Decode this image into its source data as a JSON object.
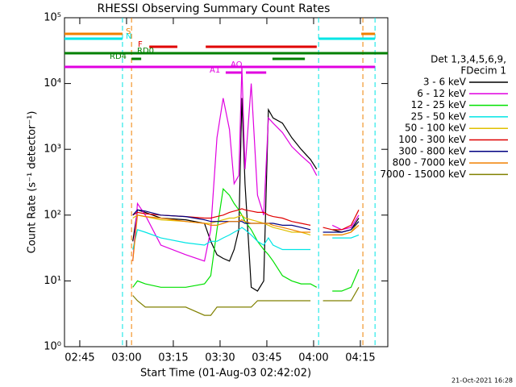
{
  "chart_data": {
    "type": "line",
    "title": "RHESSI Observing Summary Count Rates",
    "xlabel": "Start Time (01-Aug-03 02:42:02)",
    "ylabel": "Count Rate (s⁻¹ detector⁻¹)",
    "footer": "21-Oct-2021 16:28",
    "ylog": true,
    "xlim": [
      40.1,
      143.8
    ],
    "ylim": [
      1,
      100000
    ],
    "xticks": [
      {
        "value": 45,
        "label": "02:45"
      },
      {
        "value": 60,
        "label": "03:00"
      },
      {
        "value": 75,
        "label": "03:15"
      },
      {
        "value": 90,
        "label": "03:30"
      },
      {
        "value": 105,
        "label": "03:45"
      },
      {
        "value": 120,
        "label": "04:00"
      },
      {
        "value": 135,
        "label": "04:15"
      }
    ],
    "yticks": [
      {
        "value": 1,
        "label": "10⁰"
      },
      {
        "value": 10,
        "label": "10¹"
      },
      {
        "value": 100,
        "label": "10²"
      },
      {
        "value": 1000,
        "label": "10³"
      },
      {
        "value": 10000,
        "label": "10⁴"
      },
      {
        "value": 100000,
        "label": "10⁵"
      }
    ],
    "legend_title": [
      "Det 1,3,4,5,6,9,",
      "FDecim 1"
    ],
    "x": [
      62,
      63.5,
      66,
      71,
      79,
      85,
      87,
      89,
      91,
      93,
      94.5,
      96,
      97,
      98,
      100,
      102,
      104,
      105.5,
      107,
      110,
      113,
      116,
      119,
      121,
      123,
      126,
      129,
      132,
      134.5
    ],
    "series": [
      {
        "name": "3 - 6 keV",
        "color": "#000000",
        "values": [
          40,
          120,
          110,
          90,
          85,
          75,
          40,
          25,
          22,
          20,
          30,
          60,
          6000,
          300,
          8,
          7,
          10,
          4000,
          3000,
          2500,
          1500,
          1000,
          700,
          500,
          null,
          60,
          55,
          60,
          90
        ]
      },
      {
        "name": "6 - 12 keV",
        "color": "#e000e0",
        "values": [
          20,
          150,
          100,
          35,
          25,
          20,
          60,
          1500,
          6000,
          2000,
          300,
          400,
          18000,
          500,
          10000,
          200,
          100,
          3000,
          2500,
          1800,
          1100,
          800,
          600,
          400,
          null,
          70,
          60,
          65,
          100
        ]
      },
      {
        "name": "12 - 25 keV",
        "color": "#00e000",
        "values": [
          8,
          10,
          9,
          8,
          8,
          9,
          12,
          60,
          250,
          200,
          150,
          120,
          100,
          80,
          60,
          40,
          30,
          25,
          20,
          12,
          10,
          9,
          9,
          8,
          null,
          7,
          7,
          8,
          15
        ]
      },
      {
        "name": "25 - 50 keV",
        "color": "#00e5e5",
        "values": [
          30,
          60,
          55,
          45,
          38,
          35,
          40,
          40,
          45,
          50,
          55,
          60,
          65,
          60,
          50,
          40,
          35,
          45,
          35,
          30,
          30,
          30,
          30,
          null,
          null,
          45,
          45,
          45,
          50
        ]
      },
      {
        "name": "50 - 100 keV",
        "color": "#e0c000",
        "values": [
          90,
          100,
          95,
          85,
          80,
          75,
          75,
          80,
          85,
          90,
          90,
          95,
          100,
          90,
          85,
          80,
          75,
          70,
          65,
          60,
          55,
          55,
          50,
          null,
          50,
          50,
          50,
          55,
          80
        ]
      },
      {
        "name": "100 - 300 keV",
        "color": "#e00000",
        "values": [
          100,
          110,
          105,
          100,
          95,
          90,
          90,
          95,
          100,
          110,
          115,
          120,
          125,
          120,
          115,
          110,
          110,
          100,
          95,
          90,
          80,
          75,
          70,
          null,
          65,
          60,
          60,
          70,
          120
        ]
      },
      {
        "name": "300 - 800 keV",
        "color": "#000080",
        "values": [
          100,
          120,
          115,
          100,
          95,
          85,
          80,
          80,
          80,
          80,
          80,
          80,
          80,
          75,
          75,
          75,
          75,
          75,
          75,
          70,
          70,
          65,
          60,
          null,
          55,
          55,
          55,
          60,
          80
        ]
      },
      {
        "name": "800 - 7000 keV",
        "color": "#f08000",
        "values": [
          20,
          100,
          95,
          90,
          80,
          75,
          70,
          70,
          75,
          80,
          80,
          80,
          85,
          80,
          75,
          75,
          75,
          75,
          70,
          65,
          60,
          55,
          55,
          null,
          50,
          50,
          50,
          55,
          70
        ]
      },
      {
        "name": "7000 - 15000 keV",
        "color": "#808000",
        "values": [
          6,
          5,
          4,
          4,
          4,
          3,
          3,
          4,
          4,
          4,
          4,
          4,
          4,
          4,
          4,
          5,
          5,
          5,
          5,
          5,
          5,
          5,
          5,
          null,
          5,
          5,
          5,
          5,
          8
        ]
      }
    ],
    "flags": [
      {
        "label": "S",
        "color": "#f08000",
        "intervals": [
          [
            40.1,
            58.7
          ],
          [
            135.3,
            139.7
          ]
        ]
      },
      {
        "label": "N",
        "color": "#00e5e5",
        "intervals": [
          [
            40.1,
            58.7
          ],
          [
            121.6,
            139.7
          ]
        ]
      },
      {
        "label": "F",
        "color": "#e00000",
        "intervals": [
          [
            67.3,
            76.3
          ],
          [
            85.4,
            121.0
          ]
        ]
      },
      {
        "label": "RD0",
        "color": "#008000",
        "intervals": [
          [
            40.1,
            143.8
          ]
        ]
      },
      {
        "label": "RD4",
        "color": "#008000",
        "intervals": [
          [
            61.6,
            64.7
          ],
          [
            106.8,
            117.2
          ]
        ]
      },
      {
        "label": "AO",
        "color": "#e000e0",
        "intervals": [
          [
            40.1,
            139.7
          ]
        ]
      },
      {
        "label": "A1",
        "color": "#e000e0",
        "intervals": [
          [
            91.8,
            97
          ],
          [
            98.3,
            104.8
          ]
        ]
      }
    ],
    "vlines": [
      {
        "x": 58.7,
        "color": "#00e5e5"
      },
      {
        "x": 61.6,
        "color": "#f08000"
      },
      {
        "x": 121.6,
        "color": "#00e5e5"
      },
      {
        "x": 135.8,
        "color": "#f08000"
      },
      {
        "x": 139.7,
        "color": "#00e5e5"
      }
    ]
  }
}
